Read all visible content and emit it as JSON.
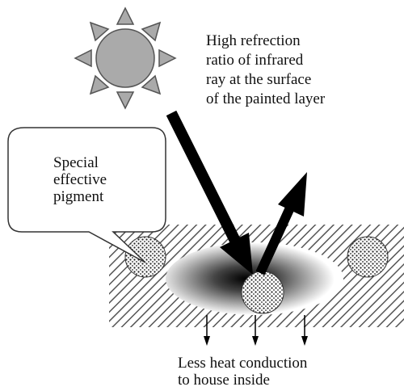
{
  "annotation": {
    "lines": [
      "High refrection",
      "ratio of infrared",
      "ray at the surface",
      "of the painted layer"
    ]
  },
  "callout": {
    "lines": [
      "Special",
      "effective",
      "pigment"
    ]
  },
  "footer": {
    "lines": [
      "Less heat conduction",
      "to house inside"
    ]
  }
}
